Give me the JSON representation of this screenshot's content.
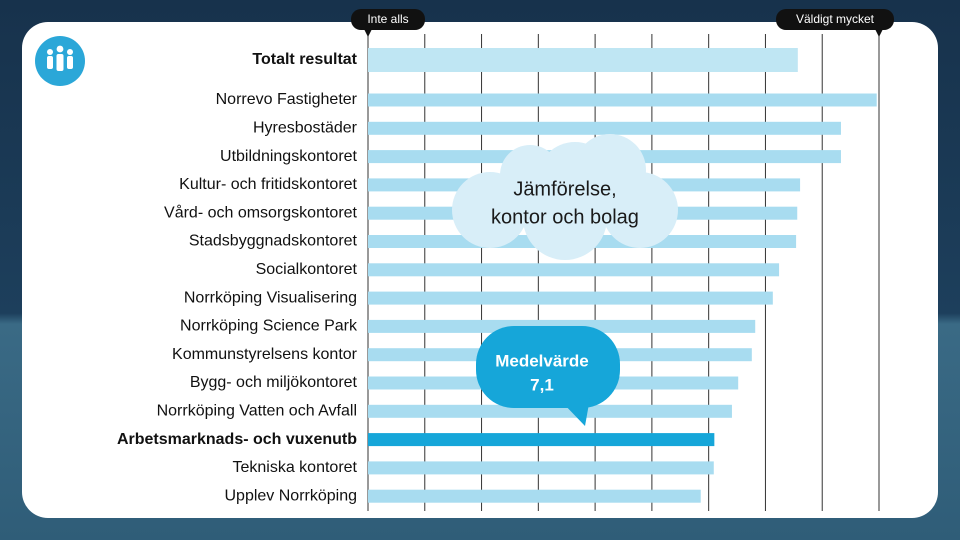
{
  "chart_data": {
    "type": "hbar",
    "categories": [
      "Totalt resultat",
      "Norrevo Fastigheter",
      "Hyresbostäder",
      "Utbildningskontoret",
      "Kultur- och fritidskontoret",
      "Vård- och omsorgskontoret",
      "Stadsbyggnadskontoret",
      "Socialkontoret",
      "Norrköping Visualisering",
      "Norrköping Science Park",
      "Kommunstyrelsens kontor",
      "Bygg- och miljökontoret",
      "Norrköping Vatten och Avfall",
      "Arbetsmarknads- och vuxenutb",
      "Tekniska kontoret",
      "Upplev Norrköping"
    ],
    "values": [
      8.57,
      9.96,
      9.33,
      9.33,
      8.61,
      8.56,
      8.54,
      8.24,
      8.13,
      7.82,
      7.76,
      7.52,
      7.41,
      7.1,
      7.09,
      6.86
    ],
    "colors": [
      "#bfe6f3",
      "#a8dcf0",
      "#a8dcf0",
      "#a8dcf0",
      "#a8dcf0",
      "#a8dcf0",
      "#a8dcf0",
      "#a8dcf0",
      "#a8dcf0",
      "#a8dcf0",
      "#a8dcf0",
      "#a8dcf0",
      "#a8dcf0",
      "#16a6d9",
      "#a8dcf0",
      "#a8dcf0"
    ],
    "emphasis": [
      0,
      13
    ],
    "xlim": [
      1,
      10
    ],
    "xticks": [
      {
        "value": 1,
        "label": "Inte alls"
      },
      {
        "value": 10,
        "label": "Väldigt mycket"
      }
    ],
    "xgrid": [
      1,
      2,
      3,
      4,
      5,
      6,
      7,
      8,
      9,
      10
    ],
    "annotations": [
      {
        "lines": [
          "Jämförelse,",
          "kontor och bolag"
        ]
      },
      {
        "lines": [
          "Medelvärde",
          "7,1"
        ]
      }
    ]
  }
}
